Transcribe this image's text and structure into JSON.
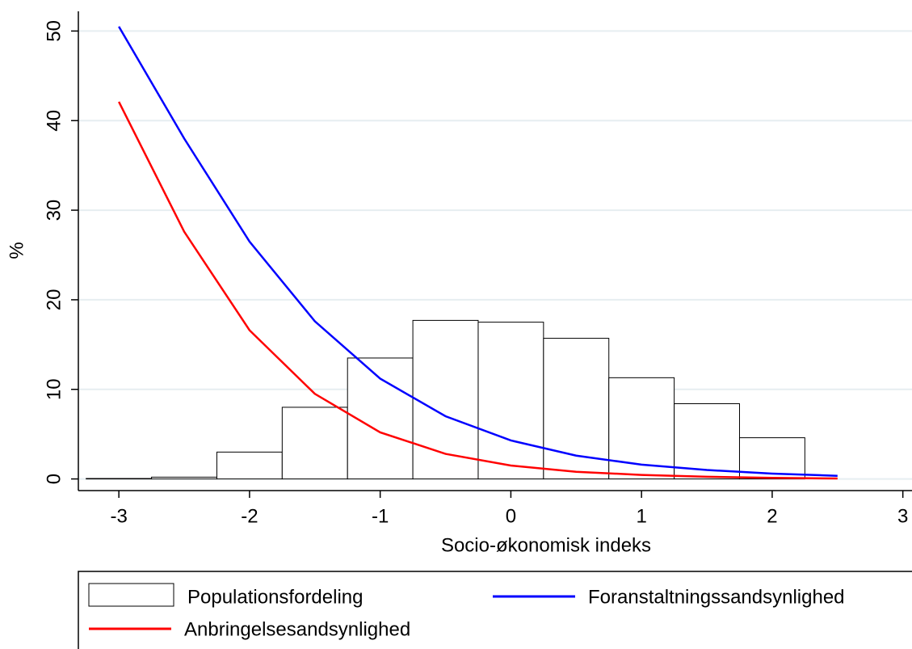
{
  "chart_data": {
    "type": "histogram-line",
    "x_label": "Socio-økonomisk indeks",
    "y_label": "%",
    "xlim": [
      -3.31,
      3.07
    ],
    "ylim": [
      -1.3,
      52.2
    ],
    "xticks": [
      -3,
      -2,
      -1,
      0,
      1,
      2,
      3
    ],
    "yticks": [
      0,
      10,
      20,
      30,
      40,
      50
    ],
    "grid": true,
    "series": [
      {
        "name": "Populationsfordeling",
        "type": "histogram",
        "color": "#ffffff",
        "edge_color": "#000000",
        "bins": [
          -3.25,
          -2.75,
          -2.25,
          -1.75,
          -1.25,
          -0.75,
          -0.25,
          0.25,
          0.75,
          1.25,
          1.75,
          2.25
        ],
        "values": [
          0.05,
          0.2,
          3.0,
          8.0,
          13.5,
          17.7,
          17.5,
          15.7,
          11.3,
          8.4,
          4.6
        ]
      },
      {
        "name": "Foranstaltningssandsynlighed",
        "type": "line",
        "color": "#0000ff",
        "x": [
          -3,
          -2.5,
          -2,
          -1.5,
          -1,
          -0.5,
          0,
          0.5,
          1,
          1.5,
          2,
          2.5
        ],
        "values": [
          50.5,
          38,
          26.5,
          17.6,
          11.2,
          7.0,
          4.3,
          2.6,
          1.6,
          1.0,
          0.6,
          0.35
        ]
      },
      {
        "name": "Anbringelsesandsynlighed",
        "type": "line",
        "color": "#ff0000",
        "x": [
          -3,
          -2.5,
          -2,
          -1.5,
          -1,
          -0.5,
          0,
          0.5,
          1,
          1.5,
          2,
          2.5
        ],
        "values": [
          42.1,
          27.6,
          16.6,
          9.5,
          5.2,
          2.8,
          1.5,
          0.8,
          0.45,
          0.25,
          0.12,
          0.05
        ]
      }
    ]
  }
}
